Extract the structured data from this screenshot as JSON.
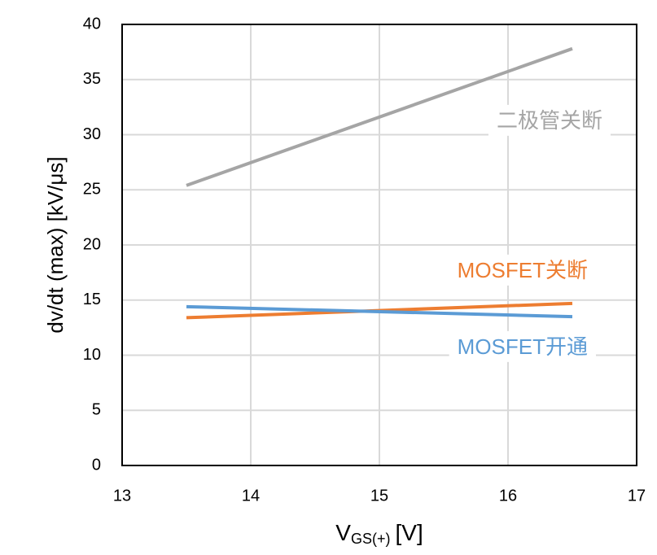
{
  "chart_data": {
    "type": "line",
    "x_label": {
      "main": "V",
      "sub": "GS(+)",
      "rest": "[V]"
    },
    "y_label": "dv/dt (max) [kV/μs]",
    "x": [
      13.5,
      16.5
    ],
    "series": [
      {
        "name": "二极管关断",
        "color": "#a5a5a5",
        "values": [
          25.4,
          37.8
        ]
      },
      {
        "name": "MOSFET关断",
        "color": "#ed7d31",
        "values": [
          13.4,
          14.7
        ]
      },
      {
        "name": "MOSFET开通",
        "color": "#5b9bd5",
        "values": [
          14.4,
          13.5
        ]
      }
    ],
    "xlim": [
      13,
      17
    ],
    "xticks": [
      13,
      14,
      15,
      16,
      17
    ],
    "ylim": [
      0,
      40
    ],
    "yticks": [
      0,
      5,
      10,
      15,
      20,
      25,
      30,
      35,
      40
    ],
    "grid": true
  }
}
